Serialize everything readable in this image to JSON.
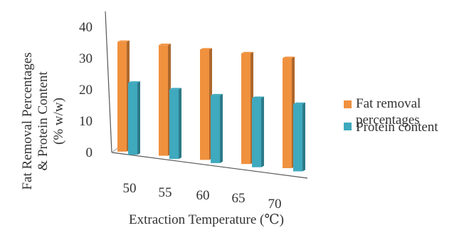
{
  "chart_data": {
    "type": "bar",
    "three_d": true,
    "categories": [
      "50",
      "55",
      "60",
      "65",
      "70"
    ],
    "series": [
      {
        "name": "Fat removal percentages",
        "color": "#F0913E",
        "values": [
          35.0,
          35.3,
          35.2,
          35.3,
          35.1
        ]
      },
      {
        "name": "Protein content",
        "color": "#3FA9BE",
        "values": [
          23.0,
          22.2,
          21.6,
          22.1,
          21.5
        ]
      }
    ],
    "title": "",
    "xlabel": "Extraction Temperature (℃)",
    "ylabel_lines": [
      "Fat Removal Percentages",
      "& Protein Content",
      "(% w/w)"
    ],
    "ylim": [
      0,
      40
    ],
    "yticks": [
      "0",
      "10",
      "20",
      "30",
      "40"
    ],
    "grid": false,
    "legend_position": "right"
  }
}
